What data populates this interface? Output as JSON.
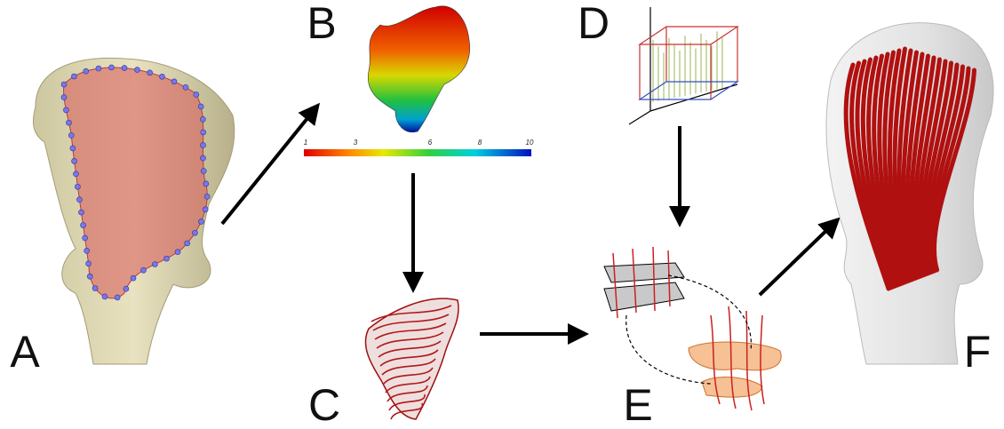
{
  "panels": [
    "A",
    "B",
    "C",
    "D",
    "E",
    "F"
  ],
  "colorbar": {
    "ticks": [
      1,
      3,
      6,
      8,
      10
    ],
    "range": [
      1,
      10
    ]
  }
}
